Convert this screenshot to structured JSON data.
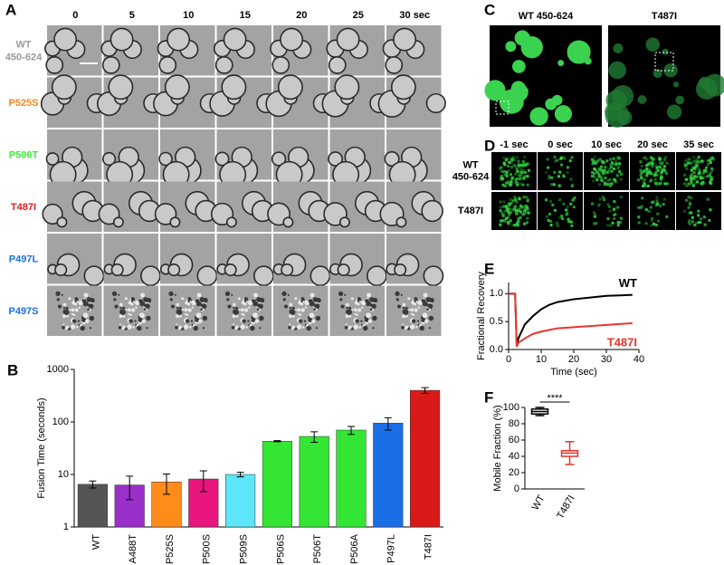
{
  "panel_a": {
    "letter": "A",
    "times": [
      "0",
      "5",
      "10",
      "15",
      "20",
      "25",
      "30 sec"
    ],
    "rows": [
      {
        "label": [
          "WT",
          "450-624"
        ],
        "color": "#9a9a9a"
      },
      {
        "label": [
          "P525S"
        ],
        "color": "#f08a1c"
      },
      {
        "label": [
          "P506T"
        ],
        "color": "#3ee83e"
      },
      {
        "label": [
          "T487I"
        ],
        "color": "#e01e1e"
      },
      {
        "label": [
          "P497L"
        ],
        "color": "#1f6fe0"
      },
      {
        "label": [
          "P497S"
        ],
        "color": "#1f6fe0"
      }
    ]
  },
  "panel_c": {
    "letter": "C",
    "labels": [
      "WT 450-624",
      "T487I"
    ]
  },
  "panel_d": {
    "letter": "D",
    "times": [
      "-1 sec",
      "0 sec",
      "10 sec",
      "20 sec",
      "35 sec"
    ],
    "rows": [
      [
        "WT",
        "450-624"
      ],
      [
        "T487I"
      ]
    ]
  },
  "chart_data": [
    {
      "type": "bar",
      "letter": "B",
      "ylabel": "Fusion Time (seconds)",
      "log_y": true,
      "categories": [
        "WT",
        "A488T",
        "P525S",
        "P500S",
        "P509S",
        "P506S",
        "P506T",
        "P506A",
        "P497L",
        "T487I"
      ],
      "values": [
        6.5,
        6.3,
        7.2,
        8.2,
        10,
        43,
        53,
        70,
        95,
        400
      ],
      "errors": [
        1,
        3,
        3,
        3.5,
        1,
        1,
        12,
        12,
        25,
        50
      ],
      "colors": [
        "#555555",
        "#9b2fc9",
        "#ff8c1a",
        "#e8157f",
        "#5ce6f7",
        "#33e633",
        "#33e633",
        "#33e633",
        "#1a6fe6",
        "#d91a1a"
      ],
      "ylim": [
        1,
        1000
      ],
      "yticks": [
        1,
        10,
        100,
        1000
      ]
    },
    {
      "type": "line",
      "letter": "E",
      "xlabel": "Time (sec)",
      "ylabel": "Fractional Recovery",
      "x": [
        0,
        1,
        2,
        2.5,
        3,
        5,
        7.5,
        10,
        12.5,
        15,
        20,
        25,
        30,
        35,
        38
      ],
      "series": [
        {
          "name": "WT",
          "color": "#000000",
          "values": [
            1,
            1,
            1,
            0.05,
            0.2,
            0.45,
            0.6,
            0.72,
            0.8,
            0.85,
            0.9,
            0.93,
            0.96,
            0.97,
            0.98
          ]
        },
        {
          "name": "T487I",
          "color": "#e8352e",
          "values": [
            1,
            1,
            1,
            0.05,
            0.12,
            0.2,
            0.28,
            0.32,
            0.35,
            0.38,
            0.4,
            0.42,
            0.44,
            0.46,
            0.47
          ]
        }
      ],
      "xlim": [
        0,
        40
      ],
      "xticks": [
        0,
        10,
        20,
        30,
        40
      ],
      "ylim": [
        0,
        1.2
      ],
      "yticks": [
        {
          "value": 0,
          "label": "0.0"
        },
        {
          "value": 0.5,
          "label": "0.5"
        },
        {
          "value": 1,
          "label": "1.0"
        }
      ]
    },
    {
      "type": "box",
      "letter": "F",
      "ylabel": "Mobile Fraction (%)",
      "annotation": "****",
      "categories": [
        "WT",
        "T487I"
      ],
      "series": [
        {
          "color": "#000000",
          "min": 90,
          "q1": 92,
          "median": 95,
          "q3": 98,
          "max": 100
        },
        {
          "color": "#e8352e",
          "min": 30,
          "q1": 40,
          "median": 44,
          "q3": 47,
          "max": 58
        }
      ],
      "ylim": [
        0,
        100
      ],
      "yticks": [
        0,
        20,
        40,
        60,
        80,
        100
      ]
    }
  ]
}
